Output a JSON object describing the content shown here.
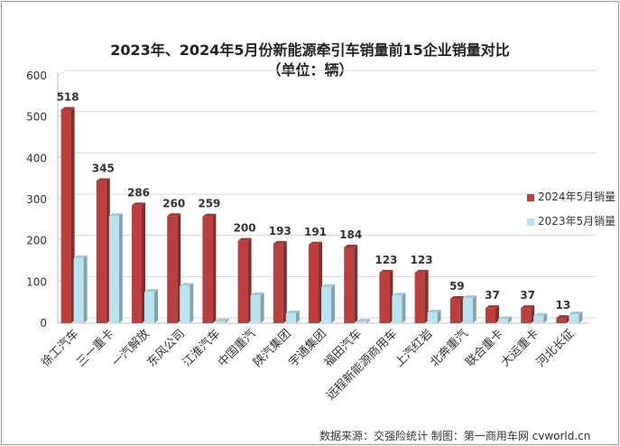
{
  "chart_data": {
    "type": "bar",
    "title": "2023年、2024年5月份新能源牵引车销量前15企业销量对比",
    "subtitle": "（单位：辆）",
    "categories": [
      "徐工汽车",
      "三一重卡",
      "一汽解放",
      "东风公司",
      "江淮汽车",
      "中国重汽",
      "陕汽集团",
      "宇通集团",
      "福田汽车",
      "远程新能源商用车",
      "上汽红岩",
      "北奔重汽",
      "联合重卡",
      "大运重卡",
      "河北长征"
    ],
    "series": [
      {
        "name": "2024年5月销量",
        "color": "#b8403e",
        "values": [
          518,
          345,
          286,
          260,
          259,
          200,
          193,
          191,
          184,
          123,
          123,
          59,
          37,
          37,
          13
        ]
      },
      {
        "name": "2023年5月销量",
        "color": "#b9e3ee",
        "values": [
          158,
          260,
          76,
          91,
          5,
          68,
          24,
          88,
          4,
          67,
          26,
          61,
          10,
          18,
          22
        ]
      }
    ],
    "ylim": [
      0,
      600
    ],
    "yticks": [
      0,
      100,
      200,
      300,
      400,
      500,
      600
    ],
    "grid": true,
    "legend_position": "right",
    "source_note": "数据来源：交强险统计  制图：第一商用车网 cvworld.cn"
  }
}
